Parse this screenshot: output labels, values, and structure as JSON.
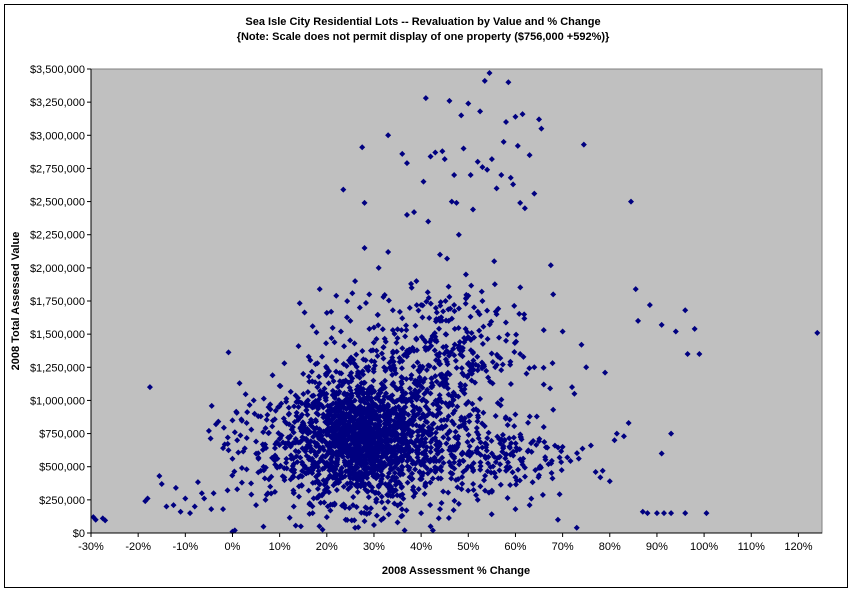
{
  "colors": {
    "plot_bg": "#c0c0c0",
    "marker": "#000080",
    "axis": "#000000",
    "page_bg": "#ffffff"
  },
  "chart_data": {
    "type": "scatter",
    "title": "Sea Isle City Residential Lots -- Revaluation by Value and % Change",
    "subtitle": "{Note: Scale does not permit display of one property ($756,000 +592%)}",
    "xlabel": "2008 Assessment % Change",
    "ylabel": "2008 Total Assessed Value",
    "xlim": [
      -0.3,
      1.25
    ],
    "ylim": [
      0,
      3500000
    ],
    "x_ticks": [
      -0.3,
      -0.2,
      -0.1,
      0,
      0.1,
      0.2,
      0.3,
      0.4,
      0.5,
      0.6,
      0.7,
      0.8,
      0.9,
      1.0,
      1.1,
      1.2
    ],
    "x_tick_labels": [
      "-30%",
      "-20%",
      "-10%",
      "0%",
      "10%",
      "20%",
      "30%",
      "40%",
      "50%",
      "60%",
      "70%",
      "80%",
      "90%",
      "100%",
      "110%",
      "120%"
    ],
    "y_ticks": [
      0,
      250000,
      500000,
      750000,
      1000000,
      1250000,
      1500000,
      1750000,
      2000000,
      2250000,
      2500000,
      2750000,
      3000000,
      3250000,
      3500000
    ],
    "y_tick_labels": [
      "$0",
      "$250,000",
      "$500,000",
      "$750,000",
      "$1,000,000",
      "$1,250,000",
      "$1,500,000",
      "$1,750,000",
      "$2,000,000",
      "$2,250,000",
      "$2,500,000",
      "$2,750,000",
      "$3,000,000",
      "$3,250,000",
      "$3,500,000"
    ],
    "grid": false,
    "legend": "none",
    "marker": "diamond",
    "points": [
      [
        -0.295,
        120000
      ],
      [
        -0.29,
        100000
      ],
      [
        -0.275,
        110000
      ],
      [
        -0.27,
        95000
      ],
      [
        -0.185,
        240000
      ],
      [
        -0.18,
        260000
      ],
      [
        -0.175,
        1100000
      ],
      [
        -0.155,
        430000
      ],
      [
        -0.15,
        370000
      ],
      [
        -0.14,
        200000
      ],
      [
        -0.125,
        210000
      ],
      [
        -0.11,
        160000
      ],
      [
        -0.1,
        260000
      ],
      [
        -0.09,
        150000
      ],
      [
        -0.065,
        300000
      ],
      [
        -0.06,
        260000
      ],
      [
        -0.05,
        770000
      ],
      [
        -0.045,
        180000
      ],
      [
        -0.035,
        820000
      ],
      [
        -0.03,
        840000
      ],
      [
        -0.02,
        180000
      ],
      [
        -0.01,
        720000
      ],
      [
        0.0,
        10000
      ],
      [
        0.0,
        850000
      ],
      [
        0.005,
        20000
      ],
      [
        0.005,
        760000
      ],
      [
        0.01,
        700000
      ],
      [
        0.015,
        1130000
      ],
      [
        0.02,
        490000
      ],
      [
        0.03,
        830000
      ],
      [
        0.04,
        780000
      ],
      [
        0.045,
        1000000
      ],
      [
        0.05,
        690000
      ],
      [
        0.055,
        560000
      ],
      [
        0.06,
        880000
      ],
      [
        0.075,
        300000
      ],
      [
        0.08,
        970000
      ],
      [
        0.085,
        1190000
      ],
      [
        0.09,
        640000
      ],
      [
        0.1,
        1110000
      ],
      [
        0.11,
        1280000
      ],
      [
        0.12,
        820000
      ],
      [
        0.13,
        300000
      ],
      [
        0.14,
        1410000
      ],
      [
        0.145,
        50000
      ],
      [
        0.15,
        1200000
      ],
      [
        0.16,
        750000
      ],
      [
        0.17,
        1560000
      ],
      [
        0.18,
        1280000
      ],
      [
        0.185,
        1840000
      ],
      [
        0.19,
        1330000
      ],
      [
        0.2,
        1660000
      ],
      [
        0.21,
        1470000
      ],
      [
        0.22,
        1790000
      ],
      [
        0.23,
        1520000
      ],
      [
        0.235,
        2590000
      ],
      [
        0.24,
        1150000
      ],
      [
        0.25,
        1600000
      ],
      [
        0.26,
        1900000
      ],
      [
        0.27,
        1700000
      ],
      [
        0.275,
        2910000
      ],
      [
        0.28,
        2150000
      ],
      [
        0.28,
        2490000
      ],
      [
        0.29,
        1800000
      ],
      [
        0.3,
        1550000
      ],
      [
        0.31,
        2000000
      ],
      [
        0.32,
        1780000
      ],
      [
        0.33,
        3000000
      ],
      [
        0.33,
        2120000
      ],
      [
        0.34,
        1680000
      ],
      [
        0.35,
        1470000
      ],
      [
        0.36,
        2860000
      ],
      [
        0.365,
        20000
      ],
      [
        0.37,
        2790000
      ],
      [
        0.37,
        2400000
      ],
      [
        0.38,
        1850000
      ],
      [
        0.385,
        2420000
      ],
      [
        0.39,
        1900000
      ],
      [
        0.4,
        1720000
      ],
      [
        0.405,
        2650000
      ],
      [
        0.41,
        3280000
      ],
      [
        0.415,
        2350000
      ],
      [
        0.42,
        2840000
      ],
      [
        0.425,
        20000
      ],
      [
        0.43,
        2870000
      ],
      [
        0.44,
        2100000
      ],
      [
        0.445,
        2880000
      ],
      [
        0.45,
        2820000
      ],
      [
        0.455,
        2070000
      ],
      [
        0.46,
        3260000
      ],
      [
        0.465,
        2500000
      ],
      [
        0.47,
        2700000
      ],
      [
        0.475,
        2490000
      ],
      [
        0.48,
        2250000
      ],
      [
        0.485,
        3150000
      ],
      [
        0.49,
        2900000
      ],
      [
        0.495,
        1950000
      ],
      [
        0.5,
        3240000
      ],
      [
        0.505,
        2700000
      ],
      [
        0.51,
        2440000
      ],
      [
        0.52,
        2800000
      ],
      [
        0.525,
        3180000
      ],
      [
        0.53,
        2760000
      ],
      [
        0.535,
        3410000
      ],
      [
        0.54,
        2740000
      ],
      [
        0.545,
        3470000
      ],
      [
        0.55,
        2820000
      ],
      [
        0.555,
        2050000
      ],
      [
        0.56,
        2600000
      ],
      [
        0.57,
        2700000
      ],
      [
        0.575,
        2950000
      ],
      [
        0.58,
        3100000
      ],
      [
        0.585,
        3400000
      ],
      [
        0.59,
        2680000
      ],
      [
        0.595,
        2630000
      ],
      [
        0.6,
        3140000
      ],
      [
        0.605,
        2920000
      ],
      [
        0.61,
        2490000
      ],
      [
        0.615,
        3160000
      ],
      [
        0.62,
        2450000
      ],
      [
        0.63,
        2850000
      ],
      [
        0.64,
        2560000
      ],
      [
        0.65,
        3120000
      ],
      [
        0.655,
        3050000
      ],
      [
        0.66,
        1530000
      ],
      [
        0.675,
        2020000
      ],
      [
        0.68,
        1800000
      ],
      [
        0.7,
        1520000
      ],
      [
        0.71,
        570000
      ],
      [
        0.72,
        1100000
      ],
      [
        0.725,
        1050000
      ],
      [
        0.73,
        40000
      ],
      [
        0.74,
        1420000
      ],
      [
        0.745,
        2930000
      ],
      [
        0.75,
        1250000
      ],
      [
        0.76,
        660000
      ],
      [
        0.77,
        460000
      ],
      [
        0.78,
        420000
      ],
      [
        0.785,
        470000
      ],
      [
        0.79,
        1210000
      ],
      [
        0.8,
        390000
      ],
      [
        0.81,
        700000
      ],
      [
        0.815,
        750000
      ],
      [
        0.83,
        730000
      ],
      [
        0.84,
        830000
      ],
      [
        0.845,
        2500000
      ],
      [
        0.855,
        1840000
      ],
      [
        0.86,
        1600000
      ],
      [
        0.87,
        160000
      ],
      [
        0.88,
        150000
      ],
      [
        0.885,
        1720000
      ],
      [
        0.9,
        150000
      ],
      [
        0.91,
        1570000
      ],
      [
        0.915,
        150000
      ],
      [
        0.93,
        750000
      ],
      [
        0.94,
        1520000
      ],
      [
        0.96,
        150000
      ],
      [
        0.965,
        1350000
      ],
      [
        0.98,
        1540000
      ],
      [
        0.99,
        1350000
      ],
      [
        1.005,
        150000
      ],
      [
        1.24,
        1510000
      ],
      [
        0.91,
        600000
      ],
      [
        0.96,
        1680000
      ],
      [
        0.93,
        150000
      ],
      [
        0.69,
        100000
      ],
      [
        0.6,
        180000
      ],
      [
        0.55,
        320000
      ],
      [
        0.6,
        420000
      ],
      [
        0.65,
        490000
      ],
      [
        0.67,
        520000
      ],
      [
        0.63,
        210000
      ],
      [
        0.55,
        600000
      ],
      [
        0.58,
        1450000
      ],
      [
        0.61,
        1350000
      ],
      [
        0.64,
        1250000
      ],
      [
        0.66,
        1120000
      ],
      [
        0.68,
        930000
      ],
      [
        0.66,
        800000
      ],
      [
        0.7,
        650000
      ],
      [
        0.56,
        1650000
      ],
      [
        0.53,
        1750000
      ],
      [
        0.5,
        1790000
      ],
      [
        0.47,
        1720000
      ],
      [
        0.44,
        1600000
      ],
      [
        0.43,
        1480000
      ],
      [
        0.41,
        1380000
      ],
      [
        0.39,
        1460000
      ],
      [
        0.36,
        1620000
      ],
      [
        0.34,
        1530000
      ],
      [
        0.32,
        1400000
      ],
      [
        0.22,
        1300000
      ],
      [
        0.2,
        1200000
      ],
      [
        0.18,
        1100000
      ],
      [
        0.16,
        1000000
      ],
      [
        0.14,
        950000
      ],
      [
        0.12,
        900000
      ],
      [
        0.1,
        500000
      ],
      [
        0.11,
        420000
      ],
      [
        0.08,
        350000
      ],
      [
        0.07,
        250000
      ],
      [
        0.05,
        210000
      ],
      [
        0.09,
        310000
      ],
      [
        0.06,
        470000
      ],
      [
        0.03,
        480000
      ],
      [
        0.02,
        380000
      ],
      [
        0.04,
        290000
      ],
      [
        0.13,
        200000
      ],
      [
        0.17,
        150000
      ],
      [
        0.2,
        120000
      ],
      [
        0.24,
        100000
      ],
      [
        0.28,
        90000
      ],
      [
        0.32,
        110000
      ],
      [
        0.36,
        130000
      ],
      [
        0.4,
        150000
      ],
      [
        0.44,
        180000
      ],
      [
        0.48,
        220000
      ],
      [
        0.52,
        250000
      ],
      [
        0.35,
        80000
      ],
      [
        0.3,
        60000
      ],
      [
        0.26,
        40000
      ],
      [
        0.42,
        50000
      ],
      [
        -0.12,
        340000
      ],
      [
        -0.08,
        200000
      ],
      [
        -0.02,
        640000
      ],
      [
        0.0,
        560000
      ],
      [
        0.01,
        330000
      ],
      [
        -0.04,
        300000
      ]
    ],
    "density_cluster_note": ""
  }
}
